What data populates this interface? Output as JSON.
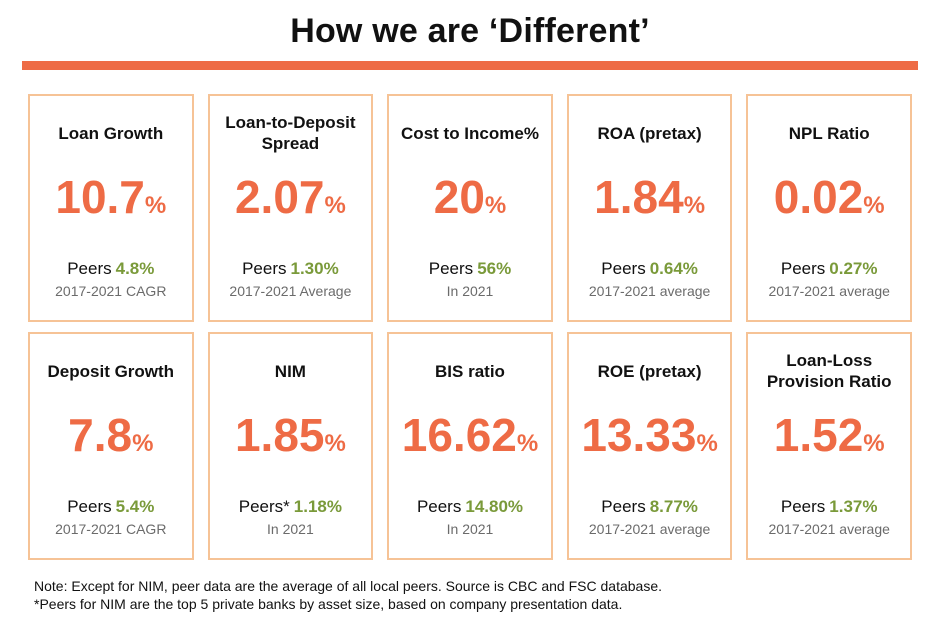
{
  "title": "How we are ‘Different’",
  "cards": [
    {
      "title": "Loan Growth",
      "value": "10.7",
      "unit": "%",
      "peer_label": "Peers",
      "peer_value": "4.8%",
      "note": "2017-2021 CAGR"
    },
    {
      "title": "Loan-to-Deposit Spread",
      "value": "2.07",
      "unit": "%",
      "peer_label": "Peers",
      "peer_value": "1.30%",
      "note": "2017-2021 Average"
    },
    {
      "title": "Cost to Income%",
      "value": "20",
      "unit": "%",
      "peer_label": "Peers",
      "peer_value": "56%",
      "note": "In 2021"
    },
    {
      "title": "ROA (pretax)",
      "value": "1.84",
      "unit": "%",
      "peer_label": "Peers",
      "peer_value": "0.64%",
      "note": "2017-2021 average"
    },
    {
      "title": "NPL Ratio",
      "value": "0.02",
      "unit": "%",
      "peer_label": "Peers",
      "peer_value": "0.27%",
      "note": "2017-2021 average"
    },
    {
      "title": "Deposit Growth",
      "value": "7.8",
      "unit": "%",
      "peer_label": "Peers",
      "peer_value": "5.4%",
      "note": "2017-2021 CAGR"
    },
    {
      "title": "NIM",
      "value": "1.85",
      "unit": "%",
      "peer_label": "Peers*",
      "peer_value": "1.18%",
      "note": "In 2021"
    },
    {
      "title": "BIS ratio",
      "value": "16.62",
      "unit": "%",
      "peer_label": "Peers",
      "peer_value": "14.80%",
      "note": "In 2021"
    },
    {
      "title": "ROE (pretax)",
      "value": "13.33",
      "unit": "%",
      "peer_label": "Peers",
      "peer_value": "8.77%",
      "note": "2017-2021 average"
    },
    {
      "title": "Loan-Loss Provision Ratio",
      "value": "1.52",
      "unit": "%",
      "peer_label": "Peers",
      "peer_value": "1.37%",
      "note": "2017-2021 average"
    }
  ],
  "footnote": {
    "line1": "Note: Except for NIM, peer data are the average of all local peers. Source is CBC and FSC database.",
    "line2": "*Peers for NIM are the top 5 private banks by asset size, based on company presentation data."
  },
  "colors": {
    "accent": "#EE6B45",
    "card_border": "#F6C396",
    "peer_value": "#7A9A3A"
  }
}
